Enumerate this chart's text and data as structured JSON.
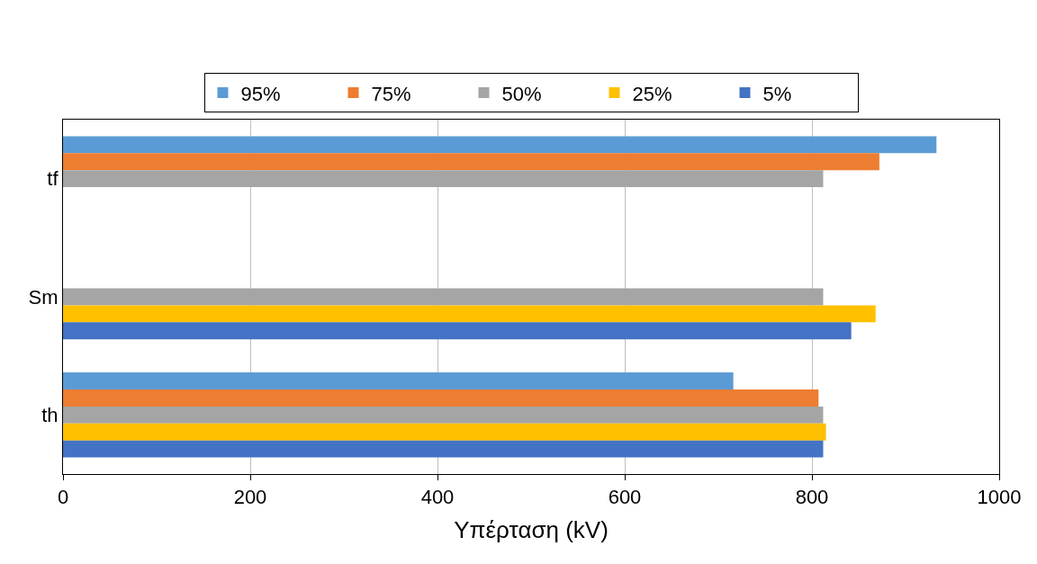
{
  "chart_data": {
    "type": "bar",
    "orientation": "horizontal",
    "categories": [
      "tf",
      "Sm",
      "th"
    ],
    "series": [
      {
        "name": "95%",
        "color": "#5b9bd5",
        "values": [
          933,
          null,
          716
        ]
      },
      {
        "name": "75%",
        "color": "#ed7d31",
        "values": [
          872,
          null,
          807
        ]
      },
      {
        "name": "50%",
        "color": "#a5a5a5",
        "values": [
          812,
          812,
          812
        ]
      },
      {
        "name": "25%",
        "color": "#ffc000",
        "values": [
          null,
          868,
          815
        ]
      },
      {
        "name": "5%",
        "color": "#4472c4",
        "values": [
          null,
          842,
          812
        ]
      }
    ],
    "xlabel": "Υπέρταση (kV)",
    "xlim": [
      0,
      1000
    ],
    "xticks": [
      0,
      200,
      400,
      600,
      800,
      1000
    ],
    "grid": "x",
    "legend": "top"
  }
}
